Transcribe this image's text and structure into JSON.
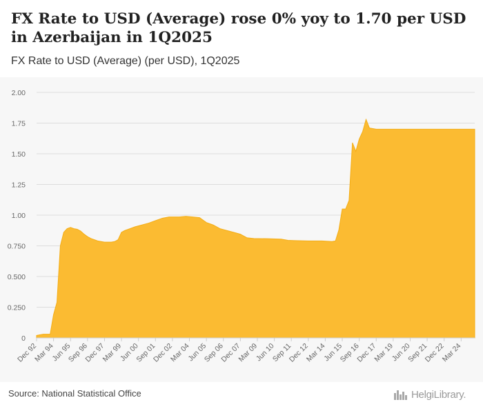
{
  "header": {
    "title": "FX Rate to USD (Average) rose 0% yoy to 1.70 per USD in Azerbaijan in 1Q2025",
    "subtitle": "FX Rate to USD (Average) (per USD), 1Q2025"
  },
  "footer": {
    "source": "Source: National Statistical Office",
    "logo_text": "HelgiLibrary."
  },
  "colors": {
    "fill": "#fbbb32",
    "stroke": "#f4ad15",
    "grid": "#dddddd",
    "axis_text": "#666666"
  },
  "chart_data": {
    "type": "area",
    "title": "FX Rate to USD (Average) (per USD), 1Q2025",
    "xlabel": "",
    "ylabel": "",
    "ylim": [
      0,
      2
    ],
    "yticks": [
      0,
      0.25,
      0.5,
      0.75,
      1.0,
      1.25,
      1.5,
      1.75,
      2.0
    ],
    "ytick_labels": [
      "0",
      "0.250",
      "0.500",
      "0.750",
      "1.00",
      "1.25",
      "1.50",
      "1.75",
      "2.00"
    ],
    "xlim": [
      1992.875,
      2025.125
    ],
    "xticks": [
      {
        "label": "Dec 92",
        "t": 1992.875
      },
      {
        "label": "Mar 94",
        "t": 1994.125
      },
      {
        "label": "Jun 95",
        "t": 1995.375
      },
      {
        "label": "Sep 96",
        "t": 1996.625
      },
      {
        "label": "Dec 97",
        "t": 1997.875
      },
      {
        "label": "Mar 99",
        "t": 1999.125
      },
      {
        "label": "Jun 00",
        "t": 2000.375
      },
      {
        "label": "Sep 01",
        "t": 2001.625
      },
      {
        "label": "Dec 02",
        "t": 2002.875
      },
      {
        "label": "Mar 04",
        "t": 2004.125
      },
      {
        "label": "Jun 05",
        "t": 2005.375
      },
      {
        "label": "Sep 06",
        "t": 2006.625
      },
      {
        "label": "Dec 07",
        "t": 2007.875
      },
      {
        "label": "Mar 09",
        "t": 2009.125
      },
      {
        "label": "Jun 10",
        "t": 2010.375
      },
      {
        "label": "Sep 11",
        "t": 2011.625
      },
      {
        "label": "Dec 12",
        "t": 2012.875
      },
      {
        "label": "Mar 14",
        "t": 2014.125
      },
      {
        "label": "Jun 15",
        "t": 2015.375
      },
      {
        "label": "Sep 16",
        "t": 2016.625
      },
      {
        "label": "Dec 17",
        "t": 2017.875
      },
      {
        "label": "Mar 19",
        "t": 2019.125
      },
      {
        "label": "Jun 20",
        "t": 2020.375
      },
      {
        "label": "Sep 21",
        "t": 2021.625
      },
      {
        "label": "Dec 22",
        "t": 2022.875
      },
      {
        "label": "Mar 24",
        "t": 2024.125
      }
    ],
    "series": [
      {
        "name": "FX Rate to USD (Average)",
        "points": [
          [
            1992.875,
            0.02
          ],
          [
            1993.125,
            0.025
          ],
          [
            1993.375,
            0.03
          ],
          [
            1993.625,
            0.03
          ],
          [
            1993.875,
            0.03
          ],
          [
            1994.125,
            0.19
          ],
          [
            1994.375,
            0.29
          ],
          [
            1994.625,
            0.75
          ],
          [
            1994.875,
            0.86
          ],
          [
            1995.125,
            0.89
          ],
          [
            1995.375,
            0.9
          ],
          [
            1995.625,
            0.89
          ],
          [
            1995.875,
            0.885
          ],
          [
            1996.125,
            0.87
          ],
          [
            1996.375,
            0.845
          ],
          [
            1996.625,
            0.825
          ],
          [
            1996.875,
            0.81
          ],
          [
            1997.125,
            0.8
          ],
          [
            1997.375,
            0.79
          ],
          [
            1997.875,
            0.78
          ],
          [
            1998.375,
            0.78
          ],
          [
            1998.625,
            0.785
          ],
          [
            1998.875,
            0.8
          ],
          [
            1999.125,
            0.86
          ],
          [
            1999.375,
            0.875
          ],
          [
            1999.625,
            0.885
          ],
          [
            2000.125,
            0.905
          ],
          [
            2000.625,
            0.92
          ],
          [
            2001.125,
            0.935
          ],
          [
            2001.625,
            0.955
          ],
          [
            2002.125,
            0.975
          ],
          [
            2002.625,
            0.985
          ],
          [
            2003.375,
            0.985
          ],
          [
            2003.875,
            0.99
          ],
          [
            2004.375,
            0.985
          ],
          [
            2004.875,
            0.98
          ],
          [
            2005.375,
            0.94
          ],
          [
            2005.875,
            0.92
          ],
          [
            2006.375,
            0.89
          ],
          [
            2006.875,
            0.875
          ],
          [
            2007.375,
            0.86
          ],
          [
            2007.875,
            0.845
          ],
          [
            2008.375,
            0.815
          ],
          [
            2008.875,
            0.81
          ],
          [
            2009.875,
            0.808
          ],
          [
            2010.875,
            0.805
          ],
          [
            2011.375,
            0.795
          ],
          [
            2011.875,
            0.793
          ],
          [
            2012.875,
            0.79
          ],
          [
            2013.875,
            0.79
          ],
          [
            2014.625,
            0.785
          ],
          [
            2014.875,
            0.79
          ],
          [
            2015.125,
            0.88
          ],
          [
            2015.375,
            1.05
          ],
          [
            2015.625,
            1.05
          ],
          [
            2015.875,
            1.12
          ],
          [
            2016.125,
            1.59
          ],
          [
            2016.375,
            1.52
          ],
          [
            2016.625,
            1.62
          ],
          [
            2016.875,
            1.68
          ],
          [
            2017.125,
            1.78
          ],
          [
            2017.375,
            1.71
          ],
          [
            2017.875,
            1.7
          ],
          [
            2018.875,
            1.7
          ],
          [
            2019.875,
            1.7
          ],
          [
            2020.875,
            1.7
          ],
          [
            2021.875,
            1.7
          ],
          [
            2022.875,
            1.7
          ],
          [
            2023.875,
            1.7
          ],
          [
            2024.875,
            1.7
          ],
          [
            2025.125,
            1.7
          ]
        ]
      }
    ]
  }
}
